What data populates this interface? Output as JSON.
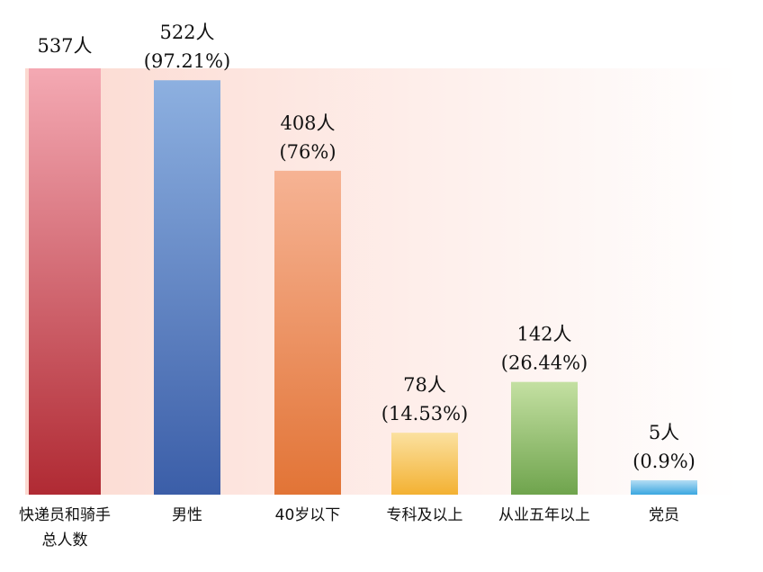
{
  "chart_data": {
    "type": "bar",
    "categories": [
      [
        "快递员和骑手",
        "总人数"
      ],
      [
        "男性"
      ],
      [
        "40岁以下"
      ],
      [
        "专科及以上"
      ],
      [
        "从业五年以上"
      ],
      [
        "党员"
      ]
    ],
    "values": [
      537,
      522,
      408,
      78,
      142,
      5
    ],
    "value_labels": [
      [
        "537人"
      ],
      [
        "522人",
        "(97.21%)"
      ],
      [
        "408人",
        "(76%)"
      ],
      [
        "78人",
        "(14.53%)"
      ],
      [
        "142人",
        "(26.44%)"
      ],
      [
        "5人",
        "(0.9%)"
      ]
    ],
    "bar_colors": [
      [
        "#f4a9b3",
        "#b02a33"
      ],
      [
        "#8db0e0",
        "#3b5ea8"
      ],
      [
        "#f6b394",
        "#e27436"
      ],
      [
        "#fbe1a0",
        "#f3b132"
      ],
      [
        "#c4e0a2",
        "#6fa44d"
      ],
      [
        "#b4ddf4",
        "#3aa6e0"
      ]
    ],
    "background_gradient": [
      "#fcd9d0",
      "#ffffff"
    ],
    "ylim": [
      0,
      537
    ],
    "grid": false,
    "legend": "none"
  }
}
